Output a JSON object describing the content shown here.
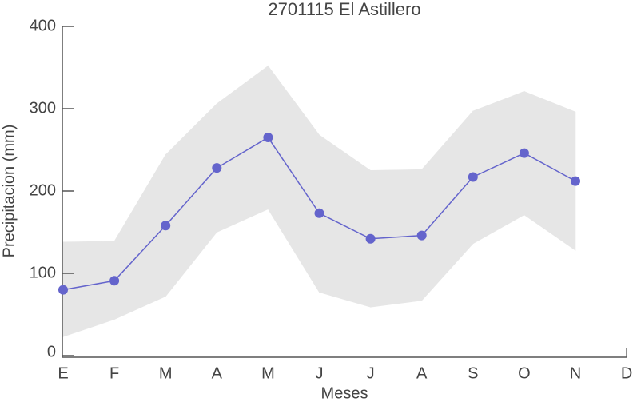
{
  "chart_data": {
    "type": "line",
    "title": "2701115 El Astillero",
    "x_label": "Meses",
    "y_label": "Precipitacion (mm)",
    "categories": [
      "E",
      "F",
      "M",
      "A",
      "M",
      "J",
      "J",
      "A",
      "S",
      "O",
      "N",
      "D"
    ],
    "values": [
      80,
      91,
      158,
      228,
      265,
      173,
      142,
      146,
      217,
      246,
      212,
      null
    ],
    "color": "#6464cc",
    "band": {
      "upper": [
        138,
        139,
        244,
        306,
        352,
        268,
        225,
        226,
        297,
        321,
        296,
        null
      ],
      "lower": [
        23,
        44,
        72,
        150,
        178,
        77,
        59,
        67,
        136,
        171,
        128,
        null
      ],
      "color": "#e6e6e6"
    },
    "ylim": [
      0,
      400
    ],
    "yticks": [
      0,
      100,
      200,
      300,
      400
    ]
  }
}
